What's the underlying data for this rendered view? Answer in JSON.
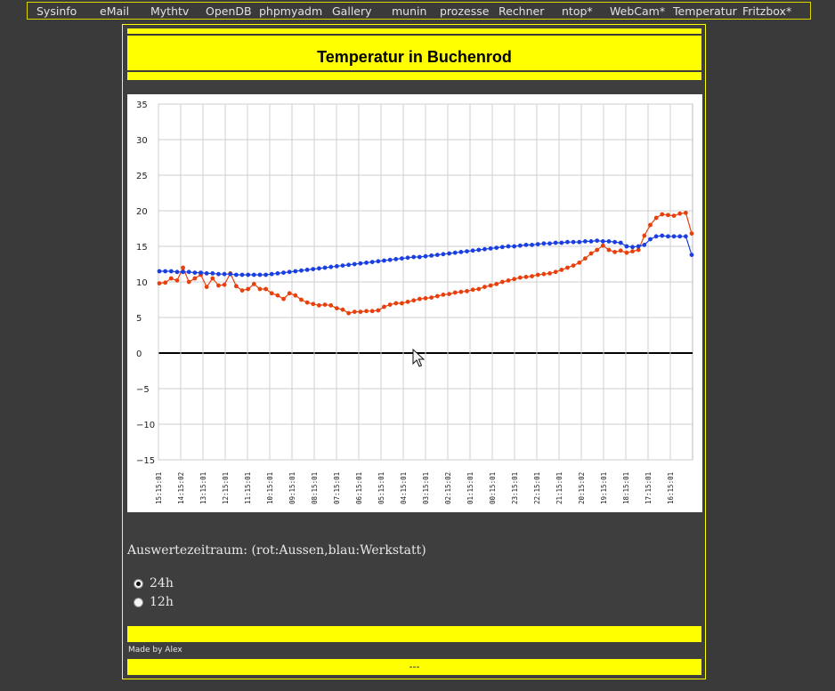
{
  "nav": {
    "items": [
      {
        "label": "Sysinfo"
      },
      {
        "label": "eMail"
      },
      {
        "label": "Mythtv"
      },
      {
        "label": "OpenDB"
      },
      {
        "label": "phpmyadm"
      },
      {
        "label": "Gallery"
      },
      {
        "label": "munin"
      },
      {
        "label": "prozesse"
      },
      {
        "label": "Rechner"
      },
      {
        "label": "ntop*"
      },
      {
        "label": "WebCam*"
      },
      {
        "label": "Temperatur"
      },
      {
        "label": "Fritzbox*"
      }
    ]
  },
  "page": {
    "title": "Temperatur in Buchenrod",
    "caption": "Auswertezeitraum: (rot:Aussen,blau:Werkstatt)",
    "options": [
      {
        "label": "24h",
        "checked": true
      },
      {
        "label": "12h",
        "checked": false
      }
    ],
    "made_by": "Made by Alex",
    "footer": "---"
  },
  "colors": {
    "accent": "#ffff00",
    "background": "#3a3a3a",
    "series_red": "#e8400c",
    "series_blue": "#1a3fe0"
  },
  "chart_data": {
    "type": "line",
    "ylim": [
      -15,
      35
    ],
    "yticks": [
      35,
      30,
      25,
      20,
      15,
      10,
      5,
      0,
      -5,
      -10,
      -15
    ],
    "grid": true,
    "xticks": [
      "15:15:01",
      "14:15:02",
      "13:15:01",
      "12:15:01",
      "11:15:01",
      "10:15:01",
      "09:15:01",
      "08:15:01",
      "07:15:01",
      "06:15:01",
      "05:15:01",
      "04:15:01",
      "03:15:01",
      "02:15:02",
      "01:15:01",
      "00:15:01",
      "23:15:01",
      "22:15:01",
      "21:15:01",
      "20:15:02",
      "19:15:01",
      "18:15:01",
      "17:15:01",
      "16:15:01"
    ],
    "series": [
      {
        "color": "#e8400c",
        "values": [
          9.8,
          9.9,
          10.5,
          10.2,
          12.0,
          10.0,
          10.5,
          11.0,
          9.3,
          10.5,
          9.5,
          9.6,
          11.2,
          9.4,
          8.8,
          9.0,
          9.7,
          9.0,
          9.0,
          8.4,
          8.1,
          7.6,
          8.4,
          8.1,
          7.5,
          7.1,
          6.9,
          6.7,
          6.8,
          6.7,
          6.3,
          6.1,
          5.6,
          5.8,
          5.8,
          5.9,
          5.9,
          6.0,
          6.5,
          6.8,
          7.0,
          7.0,
          7.2,
          7.4,
          7.6,
          7.7,
          7.8,
          8.0,
          8.2,
          8.3,
          8.5,
          8.6,
          8.7,
          8.9,
          9.0,
          9.3,
          9.5,
          9.7,
          10.0,
          10.2,
          10.4,
          10.6,
          10.7,
          10.8,
          11.0,
          11.1,
          11.2,
          11.4,
          11.7,
          12.0,
          12.3,
          12.7,
          13.3,
          14.0,
          14.5,
          15.1,
          14.5,
          14.2,
          14.4,
          14.1,
          14.3,
          14.5,
          16.5,
          18.0,
          19.0,
          19.5,
          19.4,
          19.3,
          19.6,
          19.7,
          16.8
        ]
      },
      {
        "color": "#1a3fe0",
        "values": [
          11.5,
          11.5,
          11.5,
          11.4,
          11.4,
          11.4,
          11.3,
          11.3,
          11.2,
          11.2,
          11.1,
          11.1,
          11.1,
          11.0,
          11.0,
          11.0,
          11.0,
          11.0,
          11.0,
          11.1,
          11.2,
          11.3,
          11.4,
          11.5,
          11.6,
          11.7,
          11.8,
          11.9,
          12.0,
          12.1,
          12.2,
          12.3,
          12.4,
          12.5,
          12.6,
          12.7,
          12.8,
          12.9,
          13.0,
          13.1,
          13.2,
          13.3,
          13.4,
          13.5,
          13.5,
          13.6,
          13.7,
          13.8,
          13.9,
          14.0,
          14.1,
          14.2,
          14.3,
          14.4,
          14.5,
          14.6,
          14.7,
          14.8,
          14.9,
          15.0,
          15.0,
          15.1,
          15.2,
          15.2,
          15.3,
          15.4,
          15.4,
          15.5,
          15.5,
          15.6,
          15.6,
          15.6,
          15.7,
          15.7,
          15.8,
          15.7,
          15.7,
          15.6,
          15.5,
          15.0,
          14.9,
          15.0,
          15.2,
          16.0,
          16.4,
          16.5,
          16.4,
          16.4,
          16.4,
          16.4,
          13.8
        ]
      }
    ]
  }
}
